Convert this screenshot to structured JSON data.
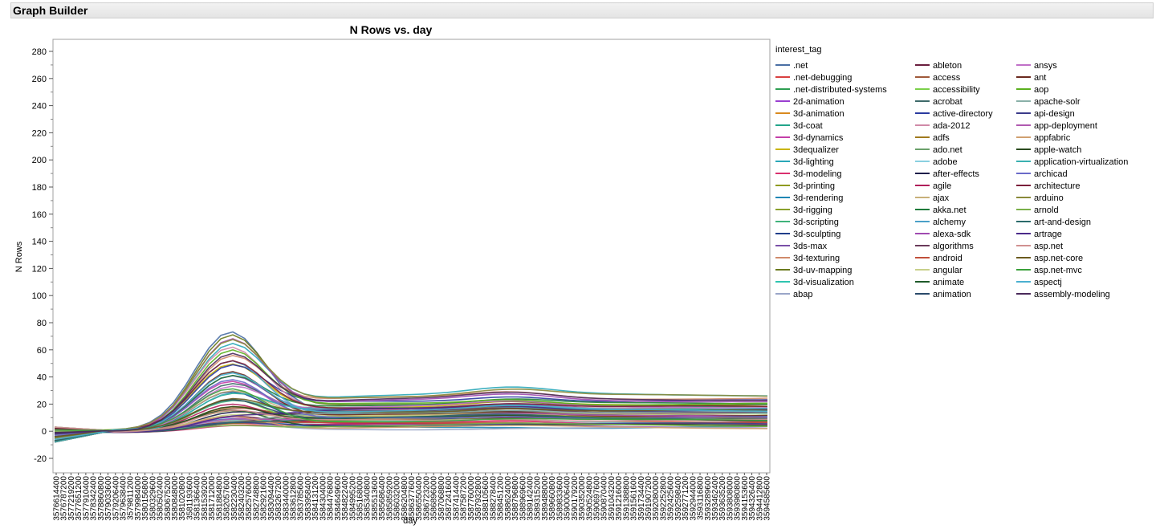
{
  "header": {
    "title": "Graph Builder"
  },
  "chart_data": {
    "type": "line",
    "title": "N Rows vs. day",
    "xlabel": "day",
    "ylabel": "N Rows",
    "ylim": [
      -20,
      280
    ],
    "yticks": [
      -20,
      0,
      20,
      40,
      60,
      80,
      100,
      120,
      140,
      160,
      180,
      200,
      220,
      240,
      260,
      280
    ],
    "xticks": [
      "3576614400",
      "3576787200",
      "3577219200",
      "3577651200",
      "3577910400",
      "3578342400",
      "3578860800",
      "3579033600",
      "3579206400",
      "3579638400",
      "3579811200",
      "3579984000",
      "3580156800",
      "3580329600",
      "3580502400",
      "3580675200",
      "3580848000",
      "3581020800",
      "3581193600",
      "3581366400",
      "3581539200",
      "3581712000",
      "3581884800",
      "3582057600",
      "3582230400",
      "3582403200",
      "3582576000",
      "3582748800",
      "3582921600",
      "3583094400",
      "3583267200",
      "3583440000",
      "3583612800",
      "3583785600",
      "3583958400",
      "3584131200",
      "3584304000",
      "3584476800",
      "3584649600",
      "3584822400",
      "3584995200",
      "3585168000",
      "3585340800",
      "3585513600",
      "3585686400",
      "3585859200",
      "3586032000",
      "3586204800",
      "3586377600",
      "3586550400",
      "3586723200",
      "3586896000",
      "3587068800",
      "3587241600",
      "3587414400",
      "3587587200",
      "3587760000",
      "3587932800",
      "3588105600",
      "3588278400",
      "3588451200",
      "3588624000",
      "3588796800",
      "3588969600",
      "3589142400",
      "3589315200",
      "3589488000",
      "3589660800",
      "3589833600",
      "3590006400",
      "3590179200",
      "3590352000",
      "3590524800",
      "3590697600",
      "3590870400",
      "3591043200",
      "3591216000",
      "3591388800",
      "3591561600",
      "3591734400",
      "3591907200",
      "3592080000",
      "3592252800",
      "3592425600",
      "3592598400",
      "3592771200",
      "3592944000",
      "3593116800",
      "3593289600",
      "3593462400",
      "3593635200",
      "3593808000",
      "3593980800",
      "3594153600",
      "3594326400",
      "3594412800",
      "3594585600"
    ],
    "legend_title": "interest_tag",
    "legend_position": "right",
    "grid": false,
    "series": [
      {
        "name": ".net",
        "color": "#4a6fa5"
      },
      {
        "name": ".net-debugging",
        "color": "#d94040"
      },
      {
        "name": ".net-distributed-systems",
        "color": "#2e9e52"
      },
      {
        "name": "2d-animation",
        "color": "#9a3fd0"
      },
      {
        "name": "3d-animation",
        "color": "#d98a1e"
      },
      {
        "name": "3d-coat",
        "color": "#23a58a"
      },
      {
        "name": "3d-dynamics",
        "color": "#c43fa8"
      },
      {
        "name": "3dequalizer",
        "color": "#c9b400"
      },
      {
        "name": "3d-lighting",
        "color": "#2aa7b8"
      },
      {
        "name": "3d-modeling",
        "color": "#d9306e"
      },
      {
        "name": "3d-printing",
        "color": "#8f9a20"
      },
      {
        "name": "3d-rendering",
        "color": "#1f87b4"
      },
      {
        "name": "3d-rigging",
        "color": "#8aa02c"
      },
      {
        "name": "3d-scripting",
        "color": "#3fb27a"
      },
      {
        "name": "3d-sculpting",
        "color": "#1f3e8a"
      },
      {
        "name": "3ds-max",
        "color": "#7a4fa8"
      },
      {
        "name": "3d-texturing",
        "color": "#d08a6a"
      },
      {
        "name": "3d-uv-mapping",
        "color": "#6a7a1e"
      },
      {
        "name": "3d-visualization",
        "color": "#2ec4b0"
      },
      {
        "name": "abap",
        "color": "#9aa6c8"
      },
      {
        "name": "ableton",
        "color": "#6a1e3e"
      },
      {
        "name": "access",
        "color": "#a05a3a"
      },
      {
        "name": "accessibility",
        "color": "#7bd04a"
      },
      {
        "name": "acrobat",
        "color": "#3e6a6a"
      },
      {
        "name": "active-directory",
        "color": "#2a3aa0"
      },
      {
        "name": "ada-2012",
        "color": "#d08aa8"
      },
      {
        "name": "adfs",
        "color": "#a07a1e"
      },
      {
        "name": "ado.net",
        "color": "#6aa06a"
      },
      {
        "name": "adobe",
        "color": "#8ad0e0"
      },
      {
        "name": "after-effects",
        "color": "#1e1e4a"
      },
      {
        "name": "agile",
        "color": "#b01e5a"
      },
      {
        "name": "ajax",
        "color": "#c8b07a"
      },
      {
        "name": "akka.net",
        "color": "#1e7a3a"
      },
      {
        "name": "alchemy",
        "color": "#4aa0c8"
      },
      {
        "name": "alexa-sdk",
        "color": "#a04ab0"
      },
      {
        "name": "algorithms",
        "color": "#6a3a5a"
      },
      {
        "name": "android",
        "color": "#c0503a"
      },
      {
        "name": "angular",
        "color": "#c8d08a"
      },
      {
        "name": "animate",
        "color": "#1e5a2a"
      },
      {
        "name": "animation",
        "color": "#2a4a6a"
      },
      {
        "name": "ansys",
        "color": "#c070c8"
      },
      {
        "name": "ant",
        "color": "#6a2a1e"
      },
      {
        "name": "aop",
        "color": "#5ab01e"
      },
      {
        "name": "apache-solr",
        "color": "#8ab0a8"
      },
      {
        "name": "api-design",
        "color": "#3a3a8a"
      },
      {
        "name": "app-deployment",
        "color": "#b05ab0"
      },
      {
        "name": "appfabric",
        "color": "#d0a070"
      },
      {
        "name": "apple-watch",
        "color": "#2a4a1e"
      },
      {
        "name": "application-virtualization",
        "color": "#3ab0b0"
      },
      {
        "name": "archicad",
        "color": "#6a6ac8"
      },
      {
        "name": "architecture",
        "color": "#7a1e3a"
      },
      {
        "name": "arduino",
        "color": "#8a8a3a"
      },
      {
        "name": "arnold",
        "color": "#7ab04a"
      },
      {
        "name": "art-and-design",
        "color": "#2a6a6a"
      },
      {
        "name": "artrage",
        "color": "#4a2a8a"
      },
      {
        "name": "asp.net",
        "color": "#d09090"
      },
      {
        "name": "asp.net-core",
        "color": "#6a5a1e"
      },
      {
        "name": "asp.net-mvc",
        "color": "#3aa03a"
      },
      {
        "name": "aspectj",
        "color": "#4ab0d0"
      },
      {
        "name": "assembly-modeling",
        "color": "#4a2a5a"
      }
    ]
  }
}
